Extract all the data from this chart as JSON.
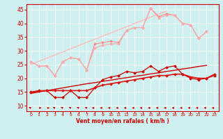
{
  "title": "",
  "xlabel": "Vent moyen/en rafales ( km/h )",
  "ylabel": "",
  "background_color": "#cff0f0",
  "grid_color": "#ffffff",
  "x": [
    0,
    1,
    2,
    3,
    4,
    5,
    6,
    7,
    8,
    9,
    10,
    11,
    12,
    13,
    14,
    15,
    16,
    17,
    18,
    19,
    20,
    21,
    22,
    23
  ],
  "xlim": [
    -0.5,
    23.5
  ],
  "ylim": [
    8,
    47
  ],
  "yticks": [
    10,
    15,
    20,
    25,
    30,
    35,
    40,
    45
  ],
  "series": [
    {
      "name": "regression_light",
      "color": "#ffbbbb",
      "lw": 1.0,
      "marker": null,
      "y": [
        25.0,
        26.2,
        27.3,
        28.5,
        29.6,
        30.8,
        31.9,
        33.1,
        34.2,
        35.4,
        36.5,
        37.7,
        38.8,
        40.0,
        41.1,
        42.3,
        43.4,
        44.5,
        null,
        null,
        null,
        null,
        null,
        null
      ]
    },
    {
      "name": "regression_dark",
      "color": "#cc0000",
      "lw": 1.0,
      "marker": null,
      "y": [
        14.5,
        15.0,
        15.5,
        16.0,
        16.5,
        17.0,
        17.5,
        18.0,
        18.4,
        18.9,
        19.3,
        19.8,
        20.2,
        20.7,
        21.1,
        21.6,
        22.0,
        22.5,
        22.9,
        23.4,
        23.8,
        24.3,
        24.7,
        null
      ]
    },
    {
      "name": "line_light1",
      "color": "#ff8888",
      "lw": 0.8,
      "marker": "D",
      "markersize": 2.0,
      "y": [
        26.0,
        24.5,
        24.5,
        21.0,
        26.0,
        27.5,
        27.0,
        23.0,
        32.5,
        33.0,
        33.5,
        33.0,
        37.5,
        38.5,
        38.5,
        45.5,
        42.5,
        43.5,
        43.0,
        40.0,
        39.5,
        34.5,
        37.0,
        null
      ]
    },
    {
      "name": "line_light2",
      "color": "#ffaaaa",
      "lw": 0.8,
      "marker": "D",
      "markersize": 2.0,
      "y": [
        26.0,
        24.5,
        24.5,
        21.0,
        26.0,
        27.5,
        27.0,
        23.0,
        31.0,
        32.0,
        32.5,
        32.5,
        37.5,
        38.5,
        38.5,
        45.5,
        42.0,
        43.0,
        43.0,
        40.0,
        39.5,
        34.5,
        37.0,
        null
      ]
    },
    {
      "name": "line_dark1",
      "color": "#cc0000",
      "lw": 0.9,
      "marker": "D",
      "markersize": 2.0,
      "y": [
        15.0,
        15.5,
        15.5,
        13.0,
        13.0,
        15.5,
        13.0,
        13.0,
        16.5,
        19.5,
        20.5,
        21.0,
        22.5,
        22.0,
        22.5,
        24.5,
        22.5,
        24.0,
        24.5,
        21.5,
        20.0,
        19.5,
        20.0,
        21.0
      ]
    },
    {
      "name": "line_dark2",
      "color": "#dd1111",
      "lw": 1.2,
      "marker": "D",
      "markersize": 2.0,
      "y": [
        14.8,
        15.3,
        15.5,
        15.5,
        15.5,
        15.5,
        15.5,
        15.5,
        16.5,
        17.5,
        18.0,
        18.5,
        19.0,
        19.5,
        20.0,
        20.5,
        21.0,
        21.0,
        21.5,
        21.5,
        20.5,
        20.0,
        20.0,
        21.5
      ]
    }
  ],
  "wind_angles": [
    225,
    90,
    90,
    225,
    225,
    225,
    225,
    225,
    270,
    270,
    270,
    270,
    270,
    270,
    270,
    270,
    270,
    270,
    270,
    270,
    270,
    270,
    270,
    270
  ],
  "wind_y": 9.2,
  "wind_color": "#cc0000"
}
